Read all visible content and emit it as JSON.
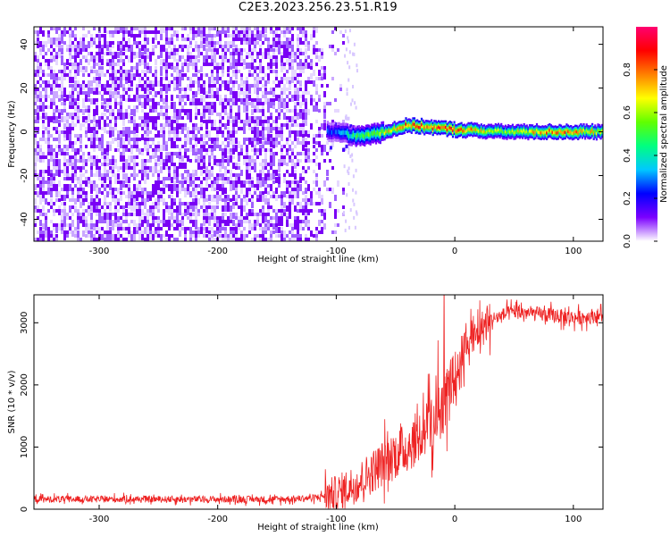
{
  "title": "C2E3.2023.256.23.51.R19",
  "chart_data": [
    {
      "type": "heatmap",
      "xlabel": "Height of straight line (km)",
      "ylabel": "Frequency (Hz)",
      "xlim": [
        -355,
        125
      ],
      "ylim": [
        -50,
        48
      ],
      "x_ticks": [
        -300,
        -200,
        -100,
        0,
        100
      ],
      "y_ticks": [
        -40,
        -20,
        0,
        20,
        40
      ],
      "colorbar": {
        "label": "Normalized spectral amplitude",
        "range": [
          0,
          1
        ],
        "ticks": [
          "0.0",
          "0.2",
          "0.4",
          "0.6",
          "0.8"
        ],
        "tick_values": [
          0,
          0.2,
          0.4,
          0.6,
          0.8
        ],
        "colors": [
          "#ffffff",
          "#7b00ff",
          "#0000ff",
          "#00c8ff",
          "#00ff80",
          "#60ff00",
          "#ffff00",
          "#ff8000",
          "#ff0000",
          "#ff0070"
        ]
      },
      "noise_region": {
        "x_range": [
          -355,
          -95
        ],
        "amplitude": "0.0-0.15"
      },
      "signal_band": {
        "x_range": [
          -108,
          125
        ],
        "center_frequency_hz": [
          {
            "x": -105,
            "f": 0
          },
          {
            "x": -80,
            "f": -2
          },
          {
            "x": -60,
            "f": 0
          },
          {
            "x": -40,
            "f": 3
          },
          {
            "x": -20,
            "f": 2
          },
          {
            "x": 0,
            "f": 1
          },
          {
            "x": 40,
            "f": 0
          },
          {
            "x": 125,
            "f": 0
          }
        ],
        "peak_amplitude": [
          {
            "x": -105,
            "a": 0.25
          },
          {
            "x": -80,
            "a": 0.5
          },
          {
            "x": -40,
            "a": 0.8
          },
          {
            "x": 0,
            "a": 0.85
          },
          {
            "x": 40,
            "a": 0.55
          },
          {
            "x": 90,
            "a": 0.85
          },
          {
            "x": 125,
            "a": 0.6
          }
        ]
      }
    },
    {
      "type": "line",
      "xlabel": "Height of straight line (km)",
      "ylabel": "SNR (10 * v/v)",
      "xlim": [
        -355,
        125
      ],
      "ylim": [
        0,
        3450
      ],
      "x_ticks": [
        -300,
        -200,
        -100,
        0,
        100
      ],
      "y_ticks": [
        0,
        1000,
        2000,
        3000
      ],
      "series": [
        {
          "color": "#ee2222",
          "x": [
            -355,
            -300,
            -250,
            -200,
            -150,
            -120,
            -100,
            -80,
            -60,
            -40,
            -20,
            -10,
            0,
            10,
            20,
            30,
            50,
            75,
            100,
            125
          ],
          "y": [
            160,
            160,
            160,
            160,
            160,
            180,
            250,
            450,
            750,
            1000,
            1350,
            1650,
            2100,
            2500,
            2850,
            3050,
            3180,
            3130,
            3080,
            3120
          ]
        }
      ]
    }
  ]
}
